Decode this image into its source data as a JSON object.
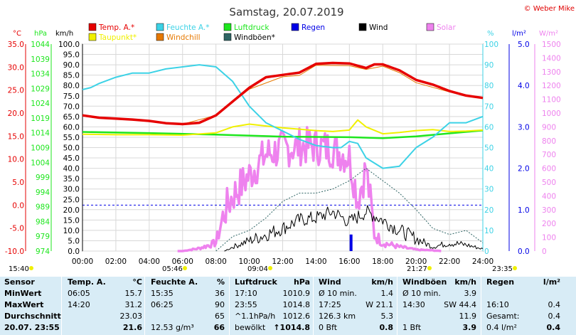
{
  "title": "Samstag, 20.07.2019",
  "copyright": "© Weber Mike",
  "legend": [
    {
      "label": "Temp. A.*",
      "color": "#e60000"
    },
    {
      "label": "Feuchte A.*",
      "color": "#3cd2e6"
    },
    {
      "label": "Luftdruck",
      "color": "#1ee61e"
    },
    {
      "label": "Regen",
      "color": "#0000e6"
    },
    {
      "label": "Wind",
      "color": "#000000"
    },
    {
      "label": "Solar",
      "color": "#ee82ee"
    },
    {
      "label": "Taupunkt*",
      "color": "#f0f000"
    },
    {
      "label": "Windchill",
      "color": "#e67800"
    },
    {
      "label": "Windböen*",
      "color": "#2e6464"
    }
  ],
  "axis_units": {
    "temp": "°C",
    "hpa": "hPa",
    "kmh": "km/h",
    "pct": "%",
    "rain": "l/m²",
    "solar": "W/m²"
  },
  "chart_data": {
    "type": "line",
    "x_ticks": [
      "00:00",
      "02:00",
      "04:00",
      "06:00",
      "08:00",
      "10:00",
      "12:00",
      "14:00",
      "16:00",
      "18:00",
      "20:00",
      "22:00",
      "24:00"
    ],
    "xlim": [
      0,
      24
    ],
    "axes": {
      "temp": {
        "ticks": [
          "35.0",
          "30.0",
          "25.0",
          "20.0",
          "15.0",
          "10.0",
          "5.0",
          "0.0",
          "-5.0",
          "-10.0"
        ],
        "range": [
          -10,
          35
        ],
        "color": "#e60000"
      },
      "hpa": {
        "ticks": [
          "1044",
          "1039",
          "1034",
          "1029",
          "1024",
          "1019",
          "1014",
          "1009",
          "1004",
          "999",
          "994",
          "989",
          "984",
          "979",
          "974"
        ],
        "range": [
          974,
          1044
        ],
        "color": "#1ee61e"
      },
      "kmh": {
        "ticks": [
          "100.0",
          "95.0",
          "90.0",
          "85.0",
          "80.0",
          "75.0",
          "70.0",
          "65.0",
          "60.0",
          "55.0",
          "50.0",
          "45.0",
          "40.0",
          "35.0",
          "30.0",
          "25.0",
          "20.0",
          "15.0",
          "10.0",
          "5.0",
          "0.0"
        ],
        "range": [
          0,
          100
        ],
        "color": "#000000"
      },
      "pct": {
        "ticks": [
          "100",
          "90",
          "80",
          "70",
          "60",
          "50",
          "40",
          "30",
          "20",
          "10",
          "0"
        ],
        "range": [
          0,
          100
        ],
        "color": "#3cd2e6"
      },
      "rain": {
        "ticks": [
          "5.0",
          "4.0",
          "3.0",
          "2.0",
          "1.0",
          "0.0"
        ],
        "range": [
          0,
          5
        ],
        "color": "#0000e6"
      },
      "solar": {
        "ticks": [
          "1500",
          "1400",
          "1300",
          "1200",
          "1100",
          "1000",
          "900",
          "800",
          "700",
          "600",
          "500",
          "400",
          "300",
          "200",
          "100",
          "0"
        ],
        "range": [
          0,
          1500
        ],
        "color": "#ee82ee"
      }
    },
    "series": [
      {
        "name": "Temp. A.*",
        "axis": "temp",
        "color": "#e60000",
        "width": 3.5,
        "points": [
          [
            0,
            19.5
          ],
          [
            1,
            19
          ],
          [
            2,
            18.8
          ],
          [
            3,
            18.6
          ],
          [
            4,
            18.3
          ],
          [
            5,
            17.8
          ],
          [
            6,
            17.6
          ],
          [
            7,
            17.9
          ],
          [
            8,
            19.5
          ],
          [
            9,
            22.5
          ],
          [
            10,
            25.5
          ],
          [
            11,
            27.8
          ],
          [
            12,
            28.3
          ],
          [
            13,
            28.8
          ],
          [
            14,
            30.7
          ],
          [
            15,
            30.9
          ],
          [
            16,
            30.8
          ],
          [
            17,
            29.8
          ],
          [
            17.5,
            30.6
          ],
          [
            18,
            30.6
          ],
          [
            19,
            29.3
          ],
          [
            20,
            27.2
          ],
          [
            21,
            26.2
          ],
          [
            22,
            24.8
          ],
          [
            23,
            23.8
          ],
          [
            24,
            23.3
          ]
        ]
      },
      {
        "name": "Windchill",
        "axis": "temp",
        "color": "#e67800",
        "width": 1,
        "points": [
          [
            0,
            19.5
          ],
          [
            2,
            18.8
          ],
          [
            4,
            18.3
          ],
          [
            6,
            17.6
          ],
          [
            8,
            19.5
          ],
          [
            10,
            25.2
          ],
          [
            12,
            27.9
          ],
          [
            13,
            28.2
          ],
          [
            14,
            30.4
          ],
          [
            16,
            30.3
          ],
          [
            17,
            29.5
          ],
          [
            18,
            30.2
          ],
          [
            19,
            28.8
          ],
          [
            20,
            26.6
          ],
          [
            22,
            24.6
          ],
          [
            24,
            23.2
          ]
        ]
      },
      {
        "name": "Feuchte A.*",
        "axis": "pct",
        "color": "#3cd2e6",
        "width": 2,
        "points": [
          [
            0,
            78
          ],
          [
            0.5,
            79
          ],
          [
            1,
            81
          ],
          [
            2,
            84
          ],
          [
            3,
            86
          ],
          [
            4,
            86
          ],
          [
            5,
            88
          ],
          [
            6,
            89
          ],
          [
            7,
            90
          ],
          [
            8,
            89
          ],
          [
            9,
            82
          ],
          [
            10,
            70
          ],
          [
            11,
            62
          ],
          [
            12,
            58
          ],
          [
            13,
            54
          ],
          [
            14,
            51
          ],
          [
            15,
            50
          ],
          [
            15.5,
            50
          ],
          [
            16,
            53
          ],
          [
            16.5,
            52
          ],
          [
            17,
            45
          ],
          [
            18,
            40
          ],
          [
            19,
            41
          ],
          [
            20,
            50
          ],
          [
            21,
            55
          ],
          [
            22,
            62
          ],
          [
            23,
            62
          ],
          [
            24,
            65
          ]
        ]
      },
      {
        "name": "Luftdruck",
        "axis": "hpa",
        "color": "#1ee61e",
        "width": 2.5,
        "points": [
          [
            0,
            1014.3
          ],
          [
            4,
            1013.9
          ],
          [
            8,
            1013.4
          ],
          [
            12,
            1012.7
          ],
          [
            16,
            1012.5
          ],
          [
            18,
            1012.2
          ],
          [
            20,
            1012.8
          ],
          [
            22,
            1013.8
          ],
          [
            24,
            1014.8
          ]
        ]
      },
      {
        "name": "Taupunkt*",
        "axis": "temp",
        "color": "#f0f000",
        "width": 2,
        "points": [
          [
            0,
            15.4
          ],
          [
            2,
            15.3
          ],
          [
            4,
            15.3
          ],
          [
            6,
            15.2
          ],
          [
            8,
            15.7
          ],
          [
            9,
            17.0
          ],
          [
            10,
            17.6
          ],
          [
            11,
            17.2
          ],
          [
            12,
            16.8
          ],
          [
            13,
            16.5
          ],
          [
            14,
            16.2
          ],
          [
            15,
            16.0
          ],
          [
            16,
            16.3
          ],
          [
            16.5,
            18.5
          ],
          [
            17,
            17.0
          ],
          [
            18,
            15.5
          ],
          [
            19,
            15.8
          ],
          [
            20,
            16.2
          ],
          [
            21,
            16.4
          ],
          [
            22,
            16.0
          ],
          [
            23,
            16.1
          ],
          [
            24,
            16.3
          ]
        ]
      },
      {
        "name": "Windböen*",
        "axis": "kmh",
        "color": "#2e6464",
        "width": 1,
        "dash": "2,2",
        "points": [
          [
            8,
            0
          ],
          [
            9,
            7
          ],
          [
            10,
            10
          ],
          [
            11,
            16
          ],
          [
            12,
            24
          ],
          [
            13,
            28
          ],
          [
            14,
            28
          ],
          [
            15,
            30
          ],
          [
            16,
            34
          ],
          [
            17,
            40
          ],
          [
            18,
            34
          ],
          [
            19,
            28
          ],
          [
            20,
            20
          ],
          [
            21,
            11
          ],
          [
            22,
            8
          ],
          [
            23,
            10
          ],
          [
            24,
            4
          ]
        ]
      },
      {
        "name": "Wind",
        "axis": "kmh",
        "color": "#000000",
        "width": 1,
        "jitter": 3.5,
        "points": [
          [
            8.5,
            0
          ],
          [
            9,
            2
          ],
          [
            10,
            5
          ],
          [
            11,
            8
          ],
          [
            12,
            11
          ],
          [
            13,
            15
          ],
          [
            14,
            16
          ],
          [
            15,
            19
          ],
          [
            16,
            14
          ],
          [
            17,
            19
          ],
          [
            18,
            15
          ],
          [
            19,
            10
          ],
          [
            20,
            6
          ],
          [
            21,
            2
          ],
          [
            22,
            4
          ],
          [
            23,
            3
          ],
          [
            24,
            1
          ]
        ]
      },
      {
        "name": "Solar",
        "axis": "solar",
        "color": "#ee82ee",
        "width": 3.5,
        "jitter": 140,
        "points": [
          [
            5.7,
            0
          ],
          [
            6,
            0
          ],
          [
            7,
            20
          ],
          [
            8,
            60
          ],
          [
            8.5,
            280
          ],
          [
            9,
            400
          ],
          [
            10,
            550
          ],
          [
            11,
            700
          ],
          [
            12,
            740
          ],
          [
            13,
            760
          ],
          [
            14,
            760
          ],
          [
            15,
            740
          ],
          [
            16,
            680
          ],
          [
            16.5,
            380
          ],
          [
            17,
            600
          ],
          [
            17.5,
            120
          ],
          [
            18,
            60
          ],
          [
            19,
            30
          ],
          [
            20,
            10
          ],
          [
            21,
            5
          ],
          [
            21.5,
            0
          ]
        ]
      }
    ],
    "rain_events": [
      {
        "x": 16.1,
        "value": 0.4
      }
    ],
    "reference_line": {
      "axis": "temp",
      "value": 0.0,
      "color": "#0000e6"
    },
    "time_marks": [
      "15:40",
      "05:46",
      "09:04",
      "21:27",
      "23:35"
    ]
  },
  "stats": {
    "header": {
      "c0": "Sensor",
      "c1": "Temp. A.",
      "c1u": "°C",
      "c2": "Feuchte A.",
      "c2u": "%",
      "c3": "Luftdruck",
      "c3u": "hPa",
      "c4": "Wind",
      "c4u": "km/h",
      "c5": "Windböen",
      "c5u": "km/h",
      "c6": "Regen",
      "c6u": "l/m²"
    },
    "min": {
      "c0": "MinWert",
      "t1": "06:05",
      "v1": "15.7",
      "t2": "15:35",
      "v2": "36",
      "t3": "17:10",
      "v3": "1010.9",
      "t4": "Ø 10 min.",
      "v4": "1.4",
      "t5": "Ø 10 min.",
      "v5": "3.9",
      "t6": "",
      "v6": ""
    },
    "max": {
      "c0": "MaxWert",
      "t1": "14:20",
      "v1": "31.2",
      "t2": "06:25",
      "v2": "90",
      "t3": "23:55",
      "v3": "1014.8",
      "t4": "17:25",
      "v4": "W 21.1",
      "t5": "14:30",
      "v5": "SW 44.4",
      "t6": "16:10",
      "v6": "0.4"
    },
    "avg": {
      "c0": "Durchschnitt",
      "t1": "",
      "v1": "23.03",
      "t2": "",
      "v2": "65",
      "t3": "^1.1hPa/h",
      "v3": "1012.6",
      "t4": "126.3 km",
      "v4": "5.3",
      "t5": "",
      "v5": "11.9",
      "t6": "Gesamt:",
      "v6": "0.4"
    },
    "cur": {
      "c0": "20.07. 23:55",
      "t1": "",
      "v1": "21.6",
      "t2": "12.53 g/m³",
      "v2": "66",
      "t3": "bewölkt",
      "v3": "↑1014.8",
      "t4": "0 Bft",
      "v4": "0.8",
      "t5": "1 Bft",
      "v5": "3.9",
      "t6": "0.4 l/m²",
      "v6": "0.4"
    }
  }
}
